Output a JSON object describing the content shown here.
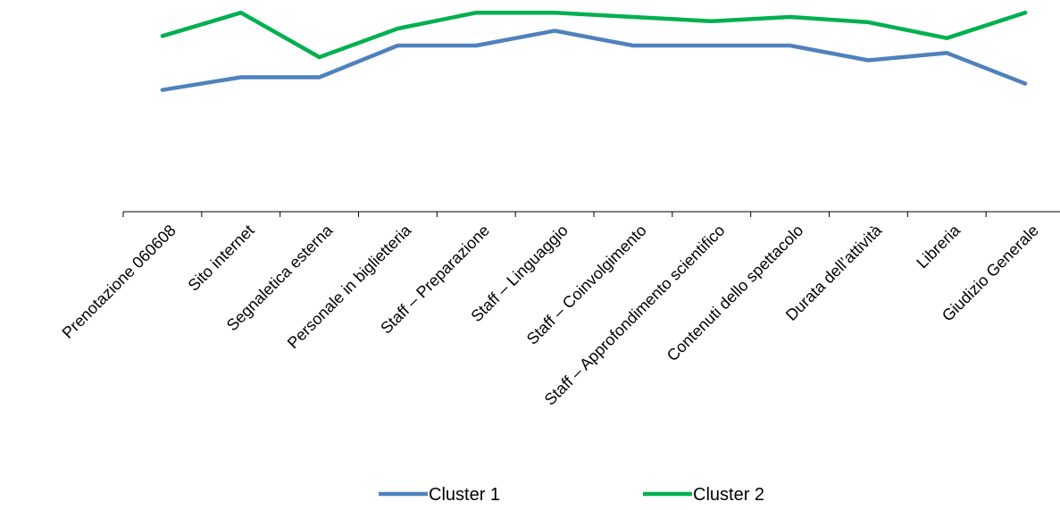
{
  "chart_data": {
    "type": "line",
    "title": "",
    "xlabel": "",
    "ylabel": "",
    "categories": [
      "Prenotazione 060608",
      "Sito internet",
      "Segnaletica esterna",
      "Personale in biglietteria",
      "Staff – Preparazione",
      "Staff – Linguaggio",
      "Staff – Coinvolgimento",
      "Staff – Approfondimento scientifico",
      "Contenuti dello spettacolo",
      "Durata dell’attività",
      "Libreria",
      "Giudizio Generale"
    ],
    "series": [
      {
        "name": "Cluster 1",
        "color": "#4F81BD",
        "values": [
          57.5,
          63.5,
          63.5,
          78.5,
          78.5,
          85.5,
          78.5,
          78.5,
          78.5,
          71.5,
          75.0,
          60.5
        ]
      },
      {
        "name": "Cluster 2",
        "color": "#00B050",
        "values": [
          83.0,
          94.0,
          73.0,
          86.5,
          94.0,
          94.0,
          92.0,
          90.0,
          92.0,
          89.5,
          82.0,
          94.0
        ]
      }
    ],
    "ylim": [
      0,
      100
    ],
    "grid": false,
    "y_axis_visible": false,
    "legend_position": "bottom"
  }
}
